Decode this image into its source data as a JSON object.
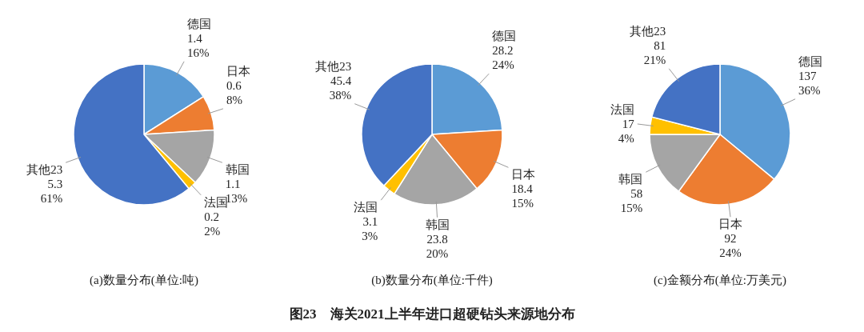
{
  "chart_data": [
    {
      "type": "pie",
      "title": "(a)数量分布(单位:吨)",
      "categories": [
        "德国",
        "日本",
        "韩国",
        "法国",
        "其他23"
      ],
      "values": [
        16,
        8,
        13,
        2,
        61
      ],
      "colors": [
        "#5b9bd5",
        "#ed7d31",
        "#a5a5a5",
        "#ffc000",
        "#4472c4"
      ],
      "value_labels": [
        "1.4\n16%",
        "0.6\n8%",
        "1.1\n13%",
        "0.2\n2%",
        "5.3\n61%"
      ],
      "annotations": [
        "图23　海关2021上半年进口超硬钻头来源地分布"
      ]
    },
    {
      "type": "pie",
      "title": "(b)数量分布(单位:千件)",
      "categories": [
        "德国",
        "日本",
        "韩国",
        "法国",
        "其他23"
      ],
      "values": [
        24,
        15,
        20,
        3,
        38
      ],
      "colors": [
        "#5b9bd5",
        "#ed7d31",
        "#a5a5a5",
        "#ffc000",
        "#4472c4"
      ],
      "value_labels": [
        "28.2\n24%",
        "18.4\n15%",
        "23.8\n20%",
        "3.1\n3%",
        "45.4\n38%"
      ]
    },
    {
      "type": "pie",
      "title": "(c)金额分布(单位:万美元)",
      "categories": [
        "德国",
        "日本",
        "韩国",
        "法国",
        "其他23"
      ],
      "values": [
        36,
        24,
        15,
        4,
        21
      ],
      "colors": [
        "#5b9bd5",
        "#ed7d31",
        "#a5a5a5",
        "#ffc000",
        "#4472c4"
      ],
      "value_labels": [
        "137\n36%",
        "92\n24%",
        "58\n15%",
        "17\n4%",
        "81\n21%"
      ]
    }
  ]
}
